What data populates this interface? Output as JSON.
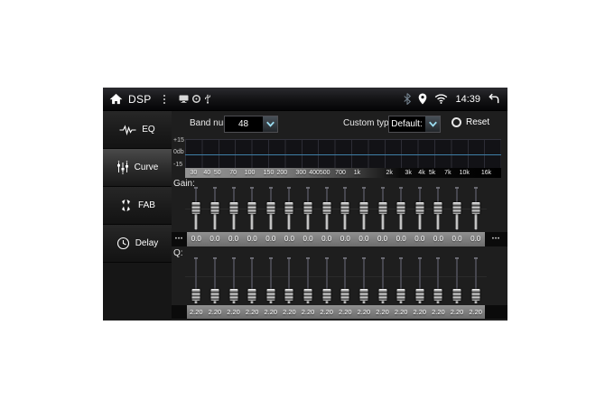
{
  "status_bar": {
    "title": "DSP",
    "time": "14:39"
  },
  "sidebar": {
    "items": [
      {
        "label": "EQ",
        "selected": false
      },
      {
        "label": "Curve",
        "selected": true
      },
      {
        "label": "FAB",
        "selected": false
      },
      {
        "label": "Delay",
        "selected": false
      }
    ]
  },
  "controls": {
    "band_num_label": "Band num:",
    "band_num_value": "48",
    "custom_type_label": "Custom type:",
    "custom_type_value": "Default:",
    "reset_label": "Reset"
  },
  "graph": {
    "y_axis_labels": [
      "+15",
      "0db",
      "-15"
    ],
    "curve_gain_db": 0,
    "freq_ticks": [
      {
        "label": "30",
        "f": 30
      },
      {
        "label": "40",
        "f": 40
      },
      {
        "label": "50",
        "f": 50
      },
      {
        "label": "70",
        "f": 70
      },
      {
        "label": "100",
        "f": 100
      },
      {
        "label": "150",
        "f": 150
      },
      {
        "label": "200",
        "f": 200
      },
      {
        "label": "300",
        "f": 300
      },
      {
        "label": "400",
        "f": 400
      },
      {
        "label": "500",
        "f": 500
      },
      {
        "label": "700",
        "f": 700
      },
      {
        "label": "1k",
        "f": 1000
      },
      {
        "label": "2k",
        "f": 2000
      },
      {
        "label": "3k",
        "f": 3000
      },
      {
        "label": "4k",
        "f": 4000
      },
      {
        "label": "5k",
        "f": 5000
      },
      {
        "label": "7k",
        "f": 7000
      },
      {
        "label": "10k",
        "f": 10000
      },
      {
        "label": "16k",
        "f": 16000
      }
    ]
  },
  "gain": {
    "label": "Gain:",
    "more_indicator": "•••",
    "values": [
      "0.0",
      "0.0",
      "0.0",
      "0.0",
      "0.0",
      "0.0",
      "0.0",
      "0.0",
      "0.0",
      "0.0",
      "0.0",
      "0.0",
      "0.0",
      "0.0",
      "0.0",
      "0.0"
    ]
  },
  "q": {
    "label": "Q:",
    "values": [
      "2.20",
      "2.20",
      "2.20",
      "2.20",
      "2.20",
      "2.20",
      "2.20",
      "2.20",
      "2.20",
      "2.20",
      "2.20",
      "2.20",
      "2.20",
      "2.20",
      "2.20",
      "2.20"
    ]
  },
  "colors": {
    "zero_line_blue": "#3f7ea6",
    "dropdown_chevron_cyan": "#9adcf0"
  }
}
